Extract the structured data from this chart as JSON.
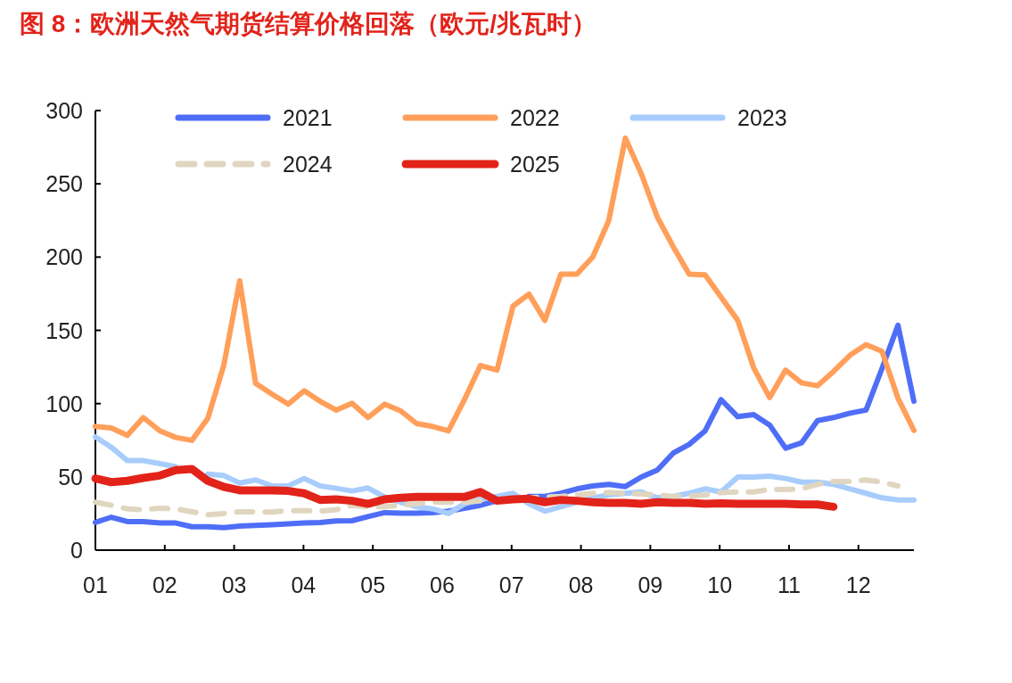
{
  "chart_data": {
    "type": "line",
    "title": "图 8：欧洲天然气期货结算价格回落（欧元/兆瓦时）",
    "x": [
      1.0,
      1.23,
      1.46,
      1.69,
      1.93,
      2.16,
      2.39,
      2.62,
      2.85,
      3.08,
      3.31,
      3.55,
      3.78,
      4.01,
      4.24,
      4.47,
      4.7,
      4.93,
      5.17,
      5.4,
      5.63,
      5.86,
      6.09,
      6.32,
      6.55,
      6.79,
      7.02,
      7.25,
      7.48,
      7.71,
      7.94,
      8.17,
      8.4,
      8.64,
      8.87,
      9.1,
      9.33,
      9.56,
      9.79,
      10.02,
      10.26,
      10.49,
      10.72,
      10.95,
      11.18,
      11.41,
      11.64,
      11.88,
      12.11,
      12.34,
      12.57,
      12.8
    ],
    "xlim": [
      1,
      12.8
    ],
    "xticks": [
      {
        "value": 1,
        "label": "01"
      },
      {
        "value": 2,
        "label": "02"
      },
      {
        "value": 3,
        "label": "03"
      },
      {
        "value": 4,
        "label": "04"
      },
      {
        "value": 5,
        "label": "05"
      },
      {
        "value": 6,
        "label": "06"
      },
      {
        "value": 7,
        "label": "07"
      },
      {
        "value": 8,
        "label": "08"
      },
      {
        "value": 9,
        "label": "09"
      },
      {
        "value": 10,
        "label": "10"
      },
      {
        "value": 11,
        "label": "11"
      },
      {
        "value": 12,
        "label": "12"
      }
    ],
    "ylim": [
      0,
      300
    ],
    "yticks": [
      0,
      50,
      100,
      150,
      200,
      250,
      300
    ],
    "legend": "top",
    "series": [
      {
        "name": "2021",
        "color": "#4f6ef7",
        "values": [
          18.9,
          22.5,
          19.5,
          19.5,
          18.5,
          18.5,
          16,
          16,
          15.4,
          16.4,
          16.9,
          17.4,
          17.9,
          18.5,
          18.9,
          19.9,
          20.1,
          22.9,
          25.6,
          25.2,
          25.2,
          25.6,
          26.6,
          28.6,
          30.6,
          33.7,
          null,
          36.7,
          36.7,
          38.8,
          41.8,
          43.8,
          44.9,
          43.4,
          49.9,
          54.6,
          66.2,
          72.2,
          81.4,
          102.7,
          91.1,
          92.5,
          85.4,
          69.6,
          73.2,
          88.4,
          90.5,
          93.5,
          95.6,
          124,
          153.4,
          101.6
        ]
      },
      {
        "name": "2022",
        "color": "#ff9f5a",
        "values": [
          84.4,
          83.4,
          78.3,
          90.5,
          81.4,
          76.9,
          74.9,
          89.9,
          126,
          183.8,
          113.8,
          106.3,
          99.6,
          108.8,
          101.6,
          95.6,
          100.2,
          90.5,
          99.6,
          95.1,
          86.4,
          84.4,
          81.4,
          102.7,
          126,
          122.9,
          166.6,
          174.7,
          156.8,
          188.3,
          188.3,
          200,
          224.8,
          281.2,
          256.8,
          227.4,
          207.1,
          188.3,
          187.9,
          172.7,
          156.8,
          124.4,
          104.1,
          122.9,
          114.2,
          112.2,
          121.9,
          133.1,
          140.2,
          135.7,
          103.7,
          81.7
        ]
      },
      {
        "name": "2023",
        "color": "#a8cdfc",
        "values": [
          77.3,
          70.2,
          61.1,
          61.1,
          59,
          57,
          null,
          51.9,
          50.9,
          45.8,
          47.9,
          43.8,
          43.8,
          48.9,
          43.8,
          42.2,
          40.4,
          42.4,
          36.3,
          32.7,
          29.6,
          28.2,
          25,
          31.6,
          34.7,
          36.7,
          38.8,
          31.6,
          26.6,
          29.6,
          32.7,
          35.7,
          37.7,
          38.8,
          39.7,
          35.7,
          36.7,
          38.8,
          41.8,
          39.7,
          49.9,
          49.9,
          50.5,
          48.9,
          46.4,
          46.4,
          44.9,
          41.8,
          38.8,
          35.7,
          34.3,
          34.3
        ]
      },
      {
        "name": "2024",
        "color": "#e0d6c0",
        "line_style": "dashed",
        "values": [
          32.7,
          30.6,
          28.2,
          27.6,
          28.6,
          28.2,
          26.2,
          24.2,
          25,
          26.2,
          26.2,
          26,
          27,
          27,
          26.6,
          27.6,
          30.6,
          29.6,
          29.6,
          30.6,
          31.6,
          32.7,
          32.7,
          32.7,
          33.7,
          34.7,
          35.1,
          35.7,
          36.3,
          36.7,
          37.7,
          38.8,
          39.4,
          38.8,
          38.3,
          37.7,
          36.7,
          36.7,
          37.7,
          39.2,
          39.7,
          39.7,
          41.4,
          41.4,
          41.8,
          44.9,
          46.9,
          46.9,
          47.9,
          46.4,
          43.8,
          null
        ]
      },
      {
        "name": "2025",
        "color": "#e2231a",
        "values": [
          48.9,
          46.4,
          47.3,
          49.3,
          50.9,
          54.6,
          55.4,
          47.3,
          43.2,
          40.8,
          40.8,
          40.8,
          40.4,
          38.8,
          34.3,
          34.7,
          33.7,
          31.6,
          34.7,
          35.7,
          36.3,
          36.3,
          36.3,
          36.3,
          39.7,
          33.7,
          34.7,
          35.1,
          32.7,
          34.3,
          33.7,
          32.7,
          32.3,
          32.3,
          31.6,
          32.7,
          32.3,
          32.3,
          31.6,
          31.9,
          31.6,
          31.6,
          31.6,
          31.6,
          31.2,
          31.2,
          29.6,
          null,
          null,
          null,
          null,
          null
        ]
      }
    ]
  }
}
